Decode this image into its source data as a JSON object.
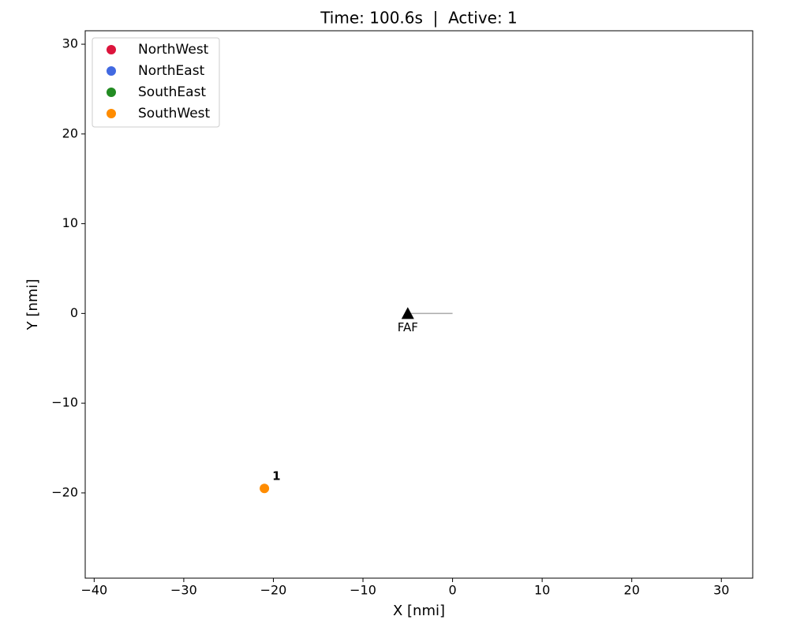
{
  "chart_data": {
    "type": "scatter",
    "title": "Time: 100.6s  |  Active: 1",
    "x_label": "X [nmi]",
    "y_label": "Y [nmi]",
    "xlim": [
      -41,
      33.5
    ],
    "ylim": [
      -29.5,
      31.5
    ],
    "xticks": [
      {
        "value": -40,
        "label": "−40"
      },
      {
        "value": -30,
        "label": "−30"
      },
      {
        "value": -20,
        "label": "−20"
      },
      {
        "value": -10,
        "label": "−10"
      },
      0,
      10,
      20,
      30
    ],
    "yticks": [
      {
        "value": -20,
        "label": "−20"
      },
      {
        "value": -10,
        "label": "−10"
      },
      0,
      10,
      20,
      30
    ],
    "legend": "upper left",
    "series": [
      {
        "name": "NorthWest",
        "color": "#dc143c",
        "x": [],
        "y": [],
        "labels": []
      },
      {
        "name": "NorthEast",
        "color": "#4169e1",
        "x": [],
        "y": [],
        "labels": []
      },
      {
        "name": "SouthEast",
        "color": "#228b22",
        "x": [],
        "y": [],
        "labels": []
      },
      {
        "name": "SouthWest",
        "color": "#ff8c00",
        "x": [
          -21
        ],
        "y": [
          -19.5
        ],
        "labels": [
          "1"
        ]
      }
    ],
    "approach": {
      "x": [
        -5,
        0
      ],
      "y": [
        0,
        0
      ],
      "color": "#aaaaaa"
    },
    "faf": {
      "label": "FAF",
      "x": -5,
      "y": 0,
      "color": "#000000"
    }
  }
}
